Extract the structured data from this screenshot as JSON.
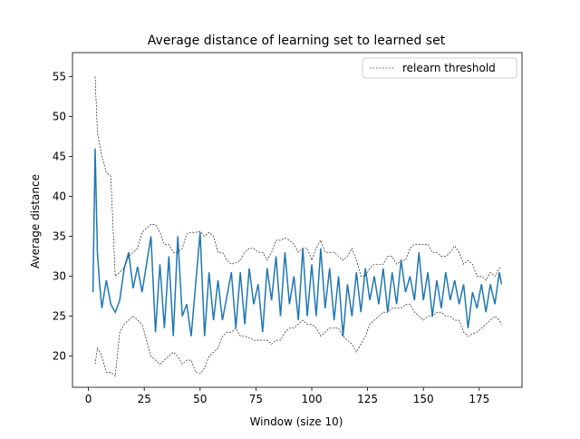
{
  "chart_data": {
    "type": "line",
    "title": "Average distance of learning set to learned set",
    "x_label": "Window (size 10)",
    "y_label": "Average distance",
    "xlim": [
      -7.15,
      194.15
    ],
    "ylim": [
      16.1,
      58.0
    ],
    "xticks": [
      0,
      25,
      50,
      75,
      100,
      125,
      150,
      175
    ],
    "yticks": [
      20,
      25,
      30,
      35,
      40,
      45,
      50,
      55
    ],
    "legend": "upper right",
    "series": [
      {
        "color": "#1f77b4",
        "x": [
          2,
          3,
          4,
          5,
          6,
          8,
          10,
          12,
          14,
          16,
          18,
          20,
          22,
          24,
          26,
          28,
          30,
          32,
          34,
          36,
          38,
          40,
          42,
          44,
          46,
          48,
          50,
          52,
          54,
          56,
          58,
          60,
          62,
          64,
          66,
          68,
          70,
          72,
          74,
          76,
          78,
          80,
          82,
          84,
          86,
          88,
          90,
          92,
          94,
          96,
          98,
          100,
          102,
          104,
          106,
          108,
          110,
          112,
          114,
          116,
          118,
          120,
          122,
          124,
          126,
          128,
          130,
          132,
          134,
          136,
          138,
          140,
          142,
          144,
          146,
          148,
          150,
          152,
          154,
          156,
          158,
          160,
          162,
          164,
          166,
          168,
          170,
          172,
          174,
          176,
          178,
          180,
          182,
          184,
          185
        ],
        "values": [
          28,
          46,
          33,
          29,
          26,
          29.5,
          26.5,
          25.5,
          27,
          31,
          33,
          28.5,
          31.2,
          28,
          31.5,
          35,
          23,
          31.5,
          23.5,
          32.5,
          22.5,
          35,
          25,
          26.5,
          22.5,
          29,
          35.5,
          22.5,
          30.5,
          24.5,
          29.5,
          24.5,
          27.5,
          30.5,
          23.5,
          30.5,
          24,
          31,
          26.5,
          29,
          23,
          31,
          27,
          32.5,
          25,
          33,
          26.5,
          30,
          24.5,
          33.5,
          25,
          31.5,
          25,
          33.5,
          26,
          31,
          24.5,
          30,
          22.5,
          29,
          25,
          30.5,
          25.5,
          31,
          27,
          30,
          26.5,
          31,
          25.5,
          30.5,
          26.5,
          32,
          28,
          30,
          27,
          33,
          27,
          30.5,
          25,
          29.5,
          26,
          30.5,
          27,
          29.5,
          26.5,
          29,
          23.5,
          28,
          26,
          29,
          25.5,
          29,
          26.5,
          30.5,
          29
        ]
      },
      {
        "name": "relearn threshold",
        "color": "#000000",
        "dashed": true,
        "x": [
          3,
          4,
          6,
          8,
          10,
          12,
          14,
          16,
          18,
          20,
          22,
          24,
          26,
          28,
          30,
          32,
          34,
          36,
          38,
          40,
          42,
          44,
          46,
          48,
          50,
          52,
          54,
          56,
          58,
          60,
          62,
          64,
          66,
          68,
          70,
          72,
          74,
          76,
          78,
          80,
          82,
          84,
          86,
          88,
          90,
          92,
          94,
          96,
          98,
          100,
          102,
          104,
          106,
          108,
          110,
          112,
          114,
          116,
          118,
          120,
          122,
          124,
          126,
          128,
          130,
          132,
          134,
          136,
          138,
          140,
          142,
          144,
          146,
          148,
          150,
          152,
          154,
          156,
          158,
          160,
          162,
          164,
          166,
          168,
          170,
          172,
          174,
          176,
          178,
          180,
          182,
          184,
          185
        ],
        "upper": [
          55,
          48,
          45,
          43,
          42.5,
          30,
          30.5,
          31,
          32.5,
          33,
          33.5,
          35.5,
          36,
          36.5,
          36.5,
          35.5,
          34,
          34,
          33,
          33,
          33.5,
          35.3,
          35.5,
          35.5,
          35.6,
          35,
          35.5,
          35,
          33,
          33,
          32,
          31.5,
          31.7,
          32,
          33,
          33.5,
          33.5,
          33,
          33,
          32,
          33,
          34.5,
          34.5,
          34.8,
          34.5,
          34,
          33,
          33.5,
          33.5,
          32,
          33.5,
          34.5,
          33,
          33,
          33,
          32.5,
          32,
          32.5,
          33.5,
          32,
          30,
          30,
          31,
          31.5,
          31.5,
          31.5,
          32.5,
          32.5,
          31.5,
          32,
          32,
          33.5,
          34,
          34,
          34,
          34,
          33,
          33,
          32.5,
          32.5,
          33,
          33.8,
          33,
          31.5,
          32,
          31.5,
          30,
          30,
          29.5,
          30.5,
          30,
          31,
          31
        ],
        "lower": [
          19,
          21,
          20,
          18,
          18,
          17.5,
          23,
          24,
          24.5,
          25,
          24.5,
          24,
          22,
          20,
          19.5,
          19,
          19.5,
          20,
          20.5,
          20,
          19,
          19.5,
          19.5,
          18,
          17.8,
          18.5,
          20,
          20.5,
          21,
          22.5,
          23,
          23,
          23.5,
          22.5,
          22.5,
          22.3,
          22,
          22,
          22,
          22,
          21.5,
          22,
          22,
          23,
          23.5,
          23.5,
          24,
          24.5,
          24,
          24,
          23.5,
          22.5,
          23,
          23.5,
          23.5,
          23.5,
          22.5,
          22,
          21.5,
          20.5,
          21.5,
          22.5,
          24,
          24.5,
          25,
          25.5,
          25.5,
          26,
          26,
          26,
          26.5,
          26.5,
          25.5,
          25,
          24.5,
          25,
          25,
          25.5,
          25.5,
          25,
          25,
          24.5,
          24.5,
          23,
          22.5,
          22.8,
          23,
          23.5,
          24,
          24.5,
          25,
          24.5,
          24
        ]
      }
    ]
  }
}
